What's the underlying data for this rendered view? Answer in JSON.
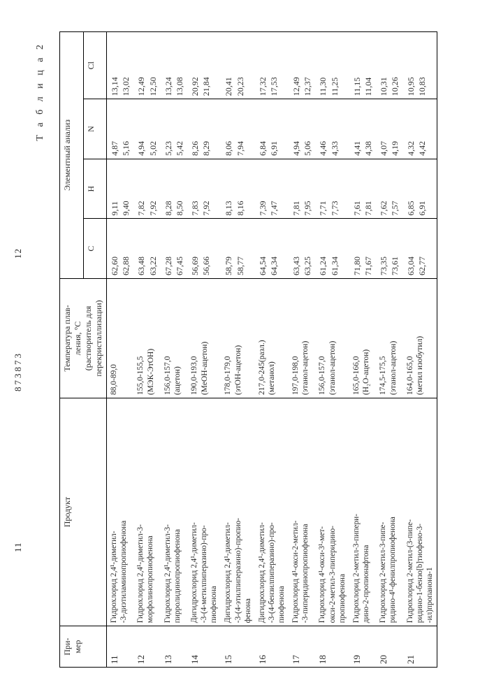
{
  "page": {
    "num_left": "11",
    "num_center": "873873",
    "num_right": "12",
    "caption": "Т а б л и ц а  2"
  },
  "header": {
    "ex": "При-\nмер",
    "prod": "Продукт",
    "temp": "Температура плав-\nления, °С\n(растворитель для\nперекристаллизации)",
    "elem": "Элементный анализ",
    "C": "C",
    "H": "H",
    "N": "N",
    "Cl": "Cl"
  },
  "rows": [
    {
      "n": "11",
      "prod": "Гидрохлорид 2,4¹-диметил-\n-3-диэтиламинопропиофенона",
      "temp": "88,0-89,0",
      "C": "62,60\n62,88",
      "H": "9,11\n9,40",
      "N": "4,87\n5,16",
      "Cl": "13,14\n13,02"
    },
    {
      "n": "12",
      "prod": "Гидрохлорид 2,4¹-диметил-3-\nморфолинопропиофенона",
      "temp": "155,0-155,5\n(МЭК-ЭтОН)",
      "C": "63,48\n63,22",
      "H": "7,82\n7,92",
      "N": "4,94\n5,02",
      "Cl": "12,49\n12,50"
    },
    {
      "n": "13",
      "prod": "Гидрохлорид 2,4¹-диметил-3-\nпирролидинопропиофенона",
      "temp": "156,0-157,0\n(ацетон)",
      "C": "67,28\n67,45",
      "H": "8,28\n8,50",
      "N": "5,23\n5,42",
      "Cl": "13,24\n13,08"
    },
    {
      "n": "14",
      "prod": "Дигидрохлорид 2,4¹-диметил-\n-3-(4-метилпиперазино)-про-\nпиофенона",
      "temp": "190,0-193,0\n(МеОН-ацетон)",
      "C": "56,69\n56,66",
      "H": "7,83\n7,92",
      "N": "8,26\n8,29",
      "Cl": "20,92\n21,84"
    },
    {
      "n": "15",
      "prod": "Дигидрохлорид 2,4¹-диметил-\n-3-(4-этилпиперазино)-пропио-\nфенона",
      "temp": "178,0-179,0\n(этОН-ацетон)",
      "C": "58,79\n58,77",
      "H": "8,13\n8,16",
      "N": "8,06\n7,94",
      "Cl": "20,41\n20,23"
    },
    {
      "n": "16",
      "prod": "Дигидрохлорид 2,4¹-диметил-\n-3-(4-бензилпиперазино)-про-\nпиофенона",
      "temp": "217,0-245(разл.)\n(метанол)",
      "C": "64,54\n64,34",
      "H": "7,39\n7,47",
      "N": "6,84\n6,91",
      "Cl": "17,32\n17,53"
    },
    {
      "n": "17",
      "prod": "Гидрохлорид 4¹-окси-2-метил-\n-3-пиперидинопропиофенона",
      "temp": "197,0-198,0\n(этанол-ацетон)",
      "C": "63,43\n63,25",
      "H": "7,81\n7,95",
      "N": "4,94\n5,06",
      "Cl": "12,49\n12,37"
    },
    {
      "n": "18",
      "prod": "Гидрохлорид 4¹-окси-3¹-мет-\nокси-2-метил-3-пиперидино-\nпропиофенона",
      "temp": "156,0-157,0\n(этанол-ацетон)",
      "C": "61,24\n61,34",
      "H": "7,71\n7,73",
      "N": "4,46\n4,33",
      "Cl": "11,30\n11,25"
    },
    {
      "n": "19",
      "prod": "Гидрохлорид 2-метил-3-пипери-\nдино-2-пропионафтона",
      "temp": "165,0-166,0\n(Н₂О-ацетон)",
      "C": "71,80\n71,67",
      "H": "7,61\n7,81",
      "N": "4,41\n4,38",
      "Cl": "11,15\n11,04"
    },
    {
      "n": "20",
      "prod": "Гидрохлорид 2-метил-3-пипе-\nридино-4¹-фенилпропиофенона",
      "temp": "174,5-175,5\n(этанол-ацетон)",
      "C": "73,35\n73,61",
      "H": "7,62\n7,57",
      "N": "4,07\n4,19",
      "Cl": "10,31\n10,26"
    },
    {
      "n": "21",
      "prod": "Гидрохлорид 2-метил-(3-пипе-\nридино-1-бензо[b]тиофено-3-\n-ил)пропанона-1",
      "temp": "164,0-165,0\n(метил изобутил)",
      "C": "63,04\n62,77",
      "H": "6,85\n6,91",
      "N": "4,32\n4,42",
      "Cl": "10,95\n10,83"
    }
  ]
}
